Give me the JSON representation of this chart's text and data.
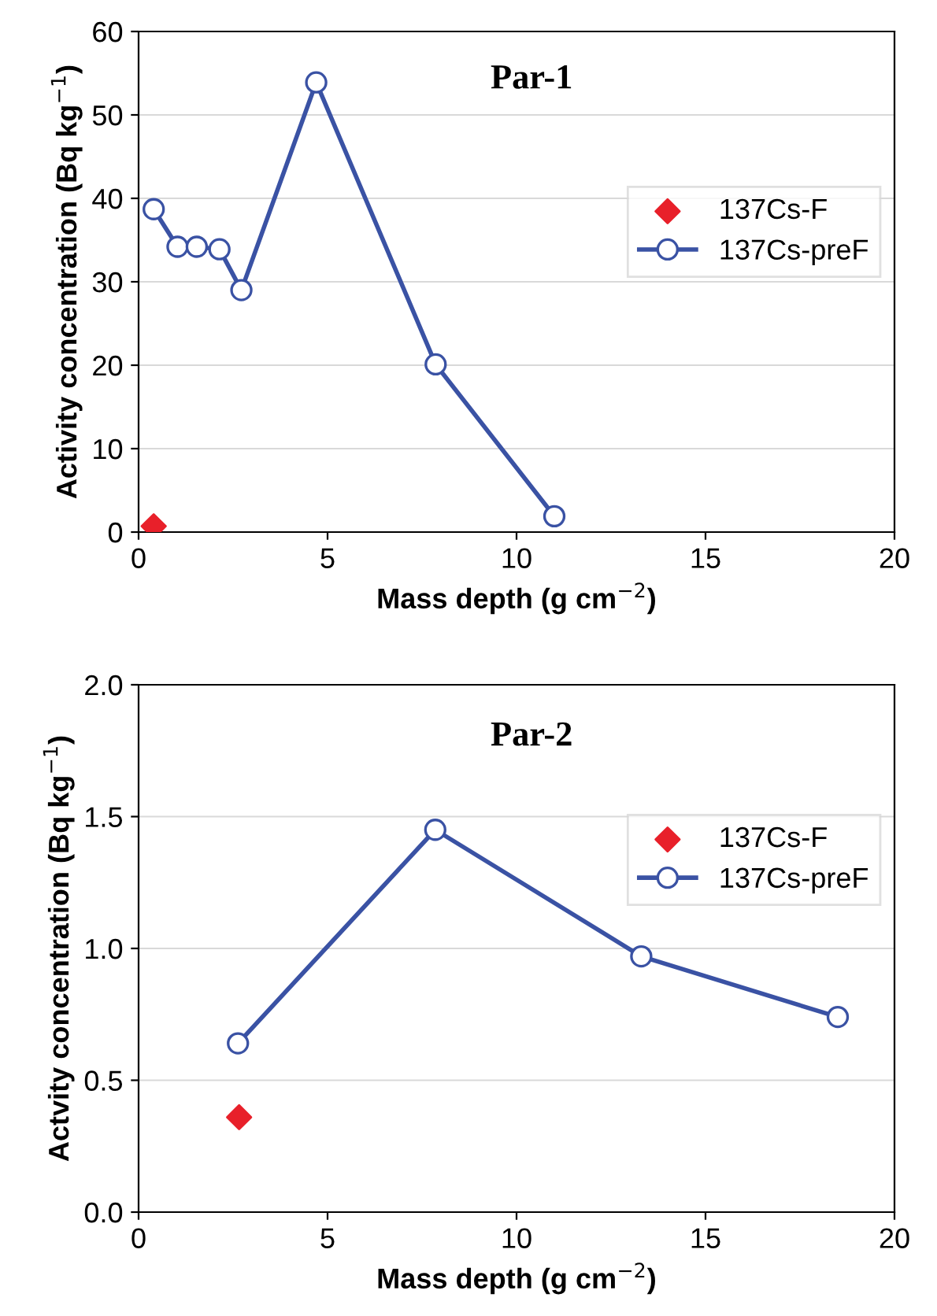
{
  "chart_data": [
    {
      "type": "line",
      "title": "Par-1",
      "xlabel": "Mass depth (g cm$^{−2}$)",
      "ylabel": "Activity concentration (Bq kg$^{−1}$)",
      "xlim": [
        0,
        20
      ],
      "xticks": [
        0,
        5,
        10,
        15,
        20
      ],
      "ylim": [
        0,
        60
      ],
      "yticks": [
        0,
        10,
        20,
        30,
        40,
        50,
        60
      ],
      "grid": "y",
      "legend": "right",
      "series": [
        {
          "name": "137Cs-F",
          "type": "scatter",
          "marker": "diamond",
          "color": "#e8202a",
          "x": [
            0.4
          ],
          "values": [
            0.7
          ]
        },
        {
          "name": "137Cs-preF",
          "marker": "circle",
          "color": "#3a52a4",
          "x": [
            0.4,
            1.03,
            1.54,
            2.14,
            2.72,
            4.7,
            7.86,
            11.0
          ],
          "values": [
            38.7,
            34.2,
            34.2,
            33.9,
            29.0,
            53.9,
            20.1,
            1.9
          ]
        }
      ]
    },
    {
      "type": "line",
      "title": "Par-2",
      "xlabel": "Mass depth (g cm$^{−2}$)",
      "ylabel": "Actvity concentration (Bq kg$^{−1}$)",
      "xlim": [
        0,
        20
      ],
      "xticks": [
        0,
        5,
        10,
        15,
        20
      ],
      "ylim": [
        0,
        2
      ],
      "yticks": [
        {
          "value": 0,
          "label": "0.0"
        },
        {
          "value": 0.5,
          "label": "0.5"
        },
        {
          "value": 1,
          "label": "1.0"
        },
        {
          "value": 1.5,
          "label": "1.5"
        },
        {
          "value": 2,
          "label": "2.0"
        }
      ],
      "grid": "y",
      "legend": "top right",
      "series": [
        {
          "name": "137Cs-F",
          "type": "scatter",
          "marker": "diamond",
          "color": "#e8202a",
          "x": [
            2.66
          ],
          "values": [
            0.36
          ]
        },
        {
          "name": "137Cs-preF",
          "marker": "circle",
          "color": "#3a52a4",
          "x": [
            2.63,
            7.85,
            13.3,
            18.5
          ],
          "values": [
            0.64,
            1.45,
            0.97,
            0.74
          ]
        }
      ]
    }
  ]
}
